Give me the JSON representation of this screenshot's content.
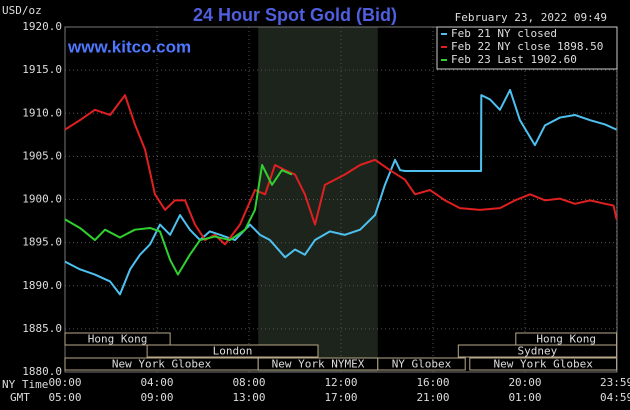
{
  "chart_data": {
    "type": "line",
    "title": "24 Hour Spot Gold (Bid)",
    "watermark": "www.kitco.com",
    "timestamp": "February 23, 2022 09:49",
    "y_label": "USD/oz",
    "x_label": "NY Time",
    "x2_label": "GMT",
    "xlim": [
      0,
      24
    ],
    "xticks": [
      {
        "value": 0,
        "label": "00:00"
      },
      {
        "value": 4,
        "label": "04:00"
      },
      {
        "value": 8,
        "label": "08:00"
      },
      {
        "value": 12,
        "label": "12:00"
      },
      {
        "value": 16,
        "label": "16:00"
      },
      {
        "value": 20,
        "label": "20:00"
      },
      {
        "value": 23.98,
        "label": "23:59"
      }
    ],
    "gmt_labels": [
      "05:00",
      "09:00",
      "13:00",
      "17:00",
      "21:00",
      "01:00",
      "04:59"
    ],
    "ylim": [
      1880,
      1920
    ],
    "yticks": [
      {
        "value": 1880,
        "label": "1880.0"
      },
      {
        "value": 1885,
        "label": "1885.0"
      },
      {
        "value": 1890,
        "label": "1890.0"
      },
      {
        "value": 1895,
        "label": "1895.0"
      },
      {
        "value": 1900,
        "label": "1900.0"
      },
      {
        "value": 1905,
        "label": "1905.0"
      },
      {
        "value": 1910,
        "label": "1910.0"
      },
      {
        "value": 1915,
        "label": "1915.0"
      },
      {
        "value": 1920,
        "label": "1920.0"
      }
    ],
    "grid": true,
    "shaded": [
      8.4,
      13.6
    ],
    "sessions": [
      {
        "label": "Hong Kong",
        "start": 0,
        "end": 4.57
      },
      {
        "label": "London",
        "start": 3.57,
        "end": 11
      },
      {
        "label": "New York Globex",
        "start": 0,
        "end": 8.4
      },
      {
        "label": "New York NYMEX",
        "start": 8.4,
        "end": 13.6
      },
      {
        "label": "NY Globex",
        "start": 13.6,
        "end": 17.4
      },
      {
        "label": "Sydney",
        "start": 17.1,
        "end": 23.98
      },
      {
        "label": "Hong Kong",
        "start": 19.6,
        "end": 23.98
      },
      {
        "label": "New York Globex",
        "start": 17.6,
        "end": 23.98
      }
    ],
    "series": [
      {
        "name": "Feb 21 NY closed",
        "color": "#4ec1f0",
        "x": [
          0,
          0.65,
          1.3,
          1.96,
          2.39,
          2.83,
          3.26,
          3.7,
          4.13,
          4.57,
          5,
          5.43,
          5.87,
          6.3,
          6.74,
          7.39,
          8.04,
          8.48,
          8.91,
          9.57,
          10,
          10.43,
          10.87,
          11.52,
          12.17,
          12.83,
          13.48,
          13.91,
          14.35,
          14.57,
          14.78,
          18.09,
          18.1,
          18.48,
          18.91,
          19.35,
          19.78,
          20.43,
          20.87,
          21.52,
          22.17,
          22.83,
          23.48,
          23.98
        ],
        "values": [
          1892.8,
          1891.9,
          1891.3,
          1890.5,
          1889.0,
          1891.9,
          1893.6,
          1894.8,
          1897.1,
          1895.9,
          1898.2,
          1896.5,
          1895.3,
          1896.3,
          1895.9,
          1895.3,
          1897.1,
          1895.9,
          1895.3,
          1893.3,
          1894.2,
          1893.6,
          1895.3,
          1896.3,
          1895.9,
          1896.5,
          1898.2,
          1901.7,
          1904.6,
          1903.4,
          1903.3,
          1903.3,
          1912.1,
          1911.6,
          1910.4,
          1912.7,
          1909.2,
          1906.3,
          1908.6,
          1909.5,
          1909.8,
          1909.2,
          1908.7,
          1908.1
        ]
      },
      {
        "name": "Feb 22 NY close 1898.50",
        "color": "#e02020",
        "x": [
          0,
          0.65,
          1.3,
          1.96,
          2.61,
          3.04,
          3.48,
          3.91,
          4.35,
          4.78,
          5.22,
          5.65,
          6.09,
          6.52,
          6.96,
          7.61,
          8.26,
          8.7,
          9.13,
          9.57,
          10,
          10.43,
          10.87,
          11.3,
          11.74,
          12.17,
          12.83,
          13.48,
          14.13,
          14.78,
          15.22,
          15.87,
          16.52,
          17.17,
          18.04,
          18.91,
          19.57,
          20.22,
          20.87,
          21.52,
          22.17,
          22.83,
          23.48,
          23.85,
          23.98
        ],
        "values": [
          1908.1,
          1909.2,
          1910.4,
          1909.8,
          1912.1,
          1908.7,
          1905.8,
          1900.6,
          1898.8,
          1899.9,
          1899.9,
          1897.1,
          1895.3,
          1895.9,
          1894.8,
          1897.1,
          1901.1,
          1900.6,
          1904.0,
          1903.4,
          1902.9,
          1900.6,
          1897.1,
          1901.7,
          1902.3,
          1902.9,
          1904.0,
          1904.6,
          1903.4,
          1902.3,
          1900.6,
          1901.1,
          1899.9,
          1899.0,
          1898.8,
          1899.0,
          1899.9,
          1900.6,
          1899.9,
          1900.1,
          1899.5,
          1899.9,
          1899.5,
          1899.3,
          1897.7
        ]
      },
      {
        "name": "Feb 23 Last 1902.60",
        "color": "#30d030",
        "x": [
          0,
          0.65,
          1.3,
          1.74,
          2.39,
          3.04,
          3.7,
          4.13,
          4.57,
          4.91,
          5.43,
          5.87,
          6.52,
          7.17,
          7.83,
          8.26,
          8.57,
          9,
          9.43,
          9.87
        ],
        "values": [
          1897.7,
          1896.7,
          1895.3,
          1896.5,
          1895.6,
          1896.5,
          1896.7,
          1896.3,
          1893.0,
          1891.3,
          1893.6,
          1895.3,
          1895.7,
          1895.3,
          1896.5,
          1898.8,
          1904.0,
          1901.7,
          1903.4,
          1902.9
        ]
      }
    ]
  }
}
